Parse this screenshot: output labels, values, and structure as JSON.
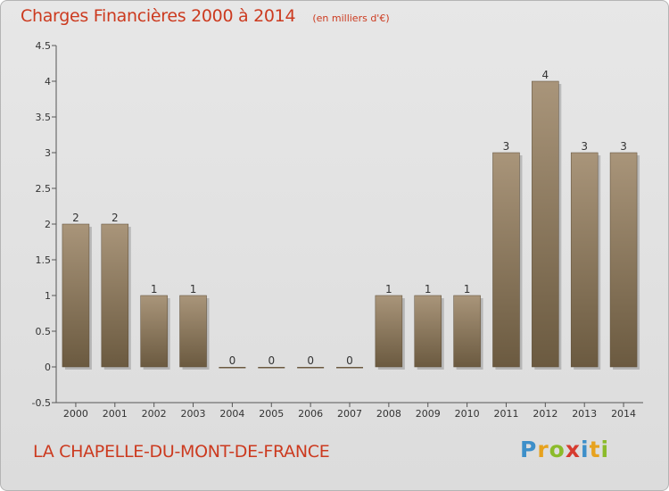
{
  "header": {
    "title": "Charges Financières 2000 à 2014",
    "subtitle": "(en milliers d'€)"
  },
  "footer": {
    "place": "LA CHAPELLE-DU-MONT-DE-FRANCE",
    "brand": "Proxiti"
  },
  "colors": {
    "title": "#cc3a1f",
    "bar_light": "#a9957a",
    "bar_dark": "#6b5a40",
    "background": "#e0e0e0"
  },
  "chart_data": {
    "type": "bar",
    "title": "Charges Financières 2000 à 2014",
    "subtitle": "(en milliers d'€)",
    "categories": [
      "2000",
      "2001",
      "2002",
      "2003",
      "2004",
      "2005",
      "2006",
      "2007",
      "2008",
      "2009",
      "2010",
      "2011",
      "2012",
      "2013",
      "2014"
    ],
    "values": [
      2,
      2,
      1,
      1,
      0,
      0,
      0,
      0,
      1,
      1,
      1,
      3,
      4,
      3,
      3
    ],
    "data_labels": [
      "2",
      "2",
      "1",
      "1",
      "0",
      "0",
      "0",
      "0",
      "1",
      "1",
      "1",
      "3",
      "4",
      "3",
      "3"
    ],
    "yticks": [
      "-0.5",
      "0",
      "0.5",
      "1",
      "1.5",
      "2",
      "2.5",
      "3",
      "3.5",
      "4",
      "4.5"
    ],
    "ylim": [
      -0.5,
      4.5
    ],
    "grid": false,
    "legend": "none"
  }
}
